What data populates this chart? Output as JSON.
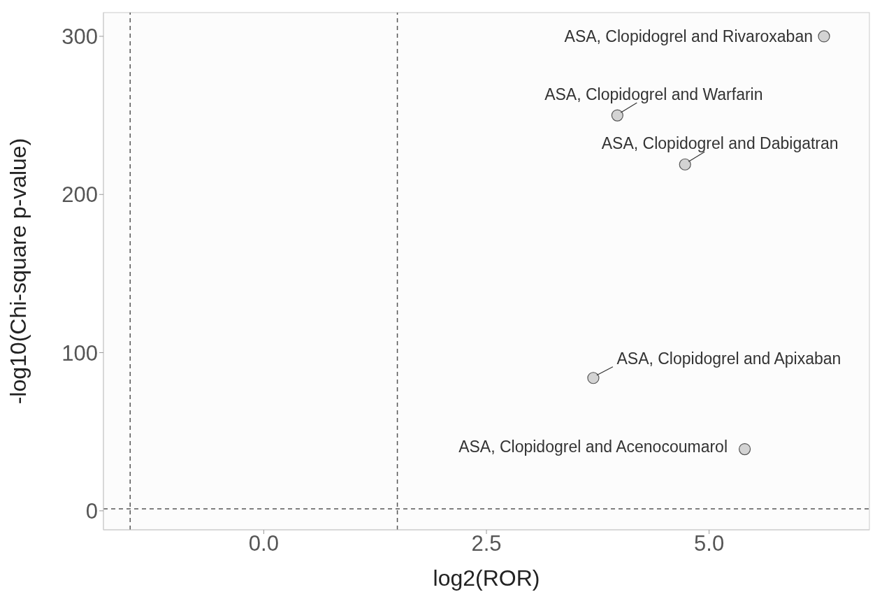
{
  "chart_data": {
    "type": "scatter",
    "xlabel": "log2(ROR)",
    "ylabel": "-log10(Chi-square p-value)",
    "x": [
      6.29,
      3.97,
      4.73,
      3.7,
      5.4
    ],
    "values": [
      300,
      250,
      219,
      84,
      39
    ],
    "color": "#d3d3d3",
    "marker": "circle",
    "xlim": [
      -1.8,
      6.8
    ],
    "ylim": [
      -12,
      315
    ],
    "xticks": [
      {
        "value": 0,
        "label": "0.0"
      },
      2.5,
      {
        "value": 5,
        "label": "5.0"
      }
    ],
    "yticks": [
      0,
      100,
      200,
      300
    ],
    "grid": false,
    "legend": false,
    "ref_lines": [
      {
        "axis": "x",
        "value": -1.5,
        "line_style": "dashed"
      },
      {
        "axis": "x",
        "value": 1.5,
        "line_style": "dashed"
      },
      {
        "axis": "y",
        "value": 1.3,
        "line_style": "dashed"
      }
    ],
    "annotations": [
      {
        "text": "ASA, Clopidogrel and Rivaroxaban",
        "x": 6.29,
        "y": 300
      },
      {
        "text": "ASA, Clopidogrel and Warfarin",
        "x": 3.97,
        "y": 250
      },
      {
        "text": "ASA, Clopidogrel and Dabigatran",
        "x": 4.73,
        "y": 219
      },
      {
        "text": "ASA, Clopidogrel and Apixaban",
        "x": 3.7,
        "y": 84
      },
      {
        "text": "ASA, Clopidogrel and Acenocoumarol",
        "x": 5.4,
        "y": 39
      }
    ]
  }
}
